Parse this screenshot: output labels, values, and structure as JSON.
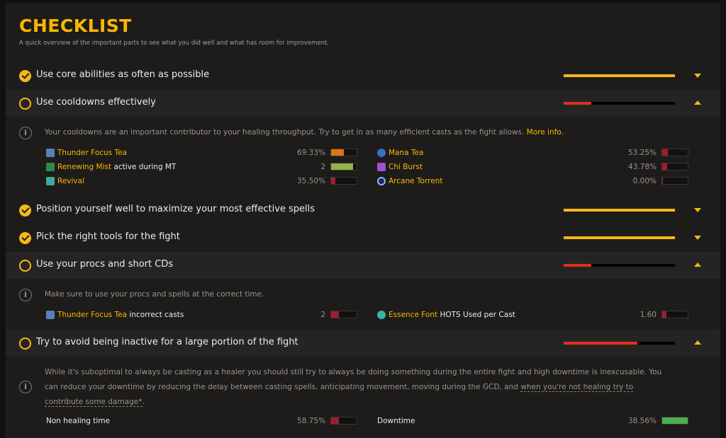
{
  "header": {
    "title": "CHECKLIST",
    "subtitle": "A quick overview of the important parts to see what you did well and what has room for improvement."
  },
  "colors": {
    "accent": "#fab700",
    "good": "#f5b819",
    "bad": "#e0301e",
    "orange": "#e07414",
    "green_yellow": "#94b04a",
    "green": "#4caf50",
    "red_fill": "#a01c2c"
  },
  "rules": [
    {
      "label": "Use core abilities as often as possible",
      "status": "pass",
      "expanded": false,
      "performance": 1.0
    },
    {
      "label": "Use cooldowns effectively",
      "status": "fail",
      "expanded": true,
      "performance": 0.25,
      "description": "Your cooldowns are an important contributor to your healing throughput. Try to get in as many efficient casts as the fight allows.",
      "more_info": "More info.",
      "requirements": [
        {
          "name": "Thunder Focus Tea",
          "suffix": "",
          "value": "69.33%",
          "fill": 0.5,
          "color": "#e07414",
          "icon": "thunder-focus-tea-icon"
        },
        {
          "name": "Renewing Mist",
          "suffix": " active during MT",
          "value": "2",
          "fill": 0.85,
          "color": "#94b04a",
          "icon": "renewing-mist-icon"
        },
        {
          "name": "Revival",
          "suffix": "",
          "value": "35.50%",
          "fill": 0.18,
          "color": "#a01c2c",
          "icon": "revival-icon"
        },
        {
          "name": "Mana Tea",
          "suffix": "",
          "value": "53.25%",
          "fill": 0.22,
          "color": "#a01c2c",
          "icon": "mana-tea-icon"
        },
        {
          "name": "Chi Burst",
          "suffix": "",
          "value": "43.78%",
          "fill": 0.2,
          "color": "#a01c2c",
          "icon": "chi-burst-icon"
        },
        {
          "name": "Arcane Torrent",
          "suffix": "",
          "value": "0.00%",
          "fill": 0.04,
          "color": "#a01c2c",
          "icon": "arcane-torrent-icon"
        }
      ]
    },
    {
      "label": "Position yourself well to maximize your most effective spells",
      "status": "pass",
      "expanded": false,
      "performance": 1.0
    },
    {
      "label": "Pick the right tools for the fight",
      "status": "pass",
      "expanded": false,
      "performance": 1.0
    },
    {
      "label": "Use your procs and short CDs",
      "status": "fail",
      "expanded": true,
      "performance": 0.25,
      "description": "Make sure to use your procs and spells at the correct time.",
      "requirements": [
        {
          "name": "Thunder Focus Tea",
          "suffix": " incorrect casts",
          "value": "2",
          "fill": 0.3,
          "color": "#a01c2c",
          "icon": "thunder-focus-tea-icon"
        },
        {
          "name": "Essence Font",
          "suffix": " HOTS Used per Cast",
          "value": "1.60",
          "fill": 0.18,
          "color": "#a01c2c",
          "icon": "essence-font-icon"
        }
      ]
    },
    {
      "label": "Try to avoid being inactive for a large portion of the fight",
      "status": "fail",
      "expanded": true,
      "performance": 0.66,
      "description": "While it's suboptimal to always be casting as a healer you should still try to always be doing something during the entire fight and high downtime is inexcusable. You can reduce your downtime by reducing the delay between casting spells, anticipating movement, moving during the GCD, and",
      "description_tail": "when you're not healing try to contribute some damage*",
      "description_end": ".",
      "requirements": [
        {
          "name": "Non healing time",
          "value": "58.75%",
          "fill": 0.3,
          "color": "#a01c2c"
        },
        {
          "name": "Downtime",
          "value": "38.56%",
          "fill": 1.0,
          "color": "#4caf50"
        }
      ]
    }
  ]
}
